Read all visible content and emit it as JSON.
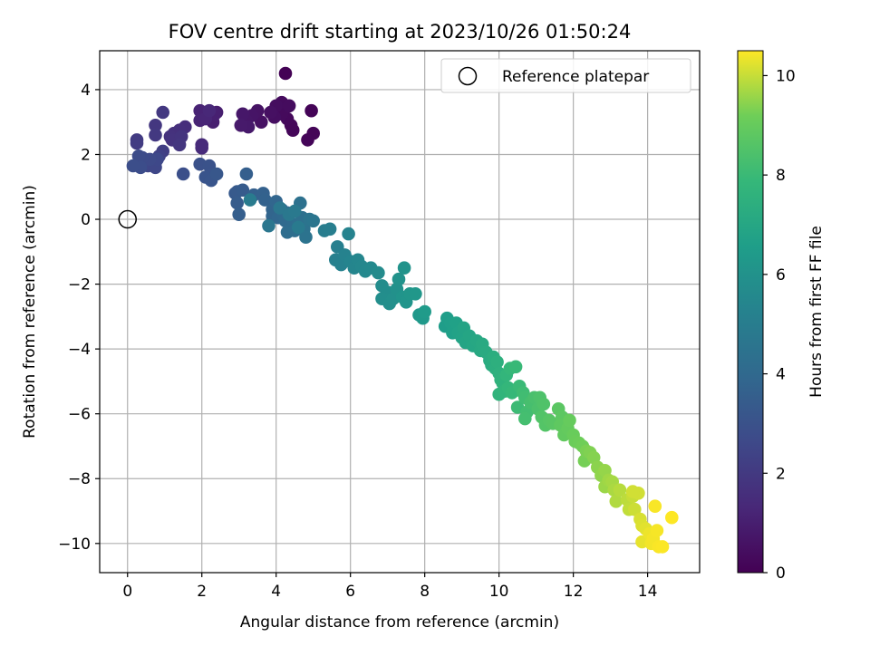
{
  "chart_data": {
    "type": "scatter",
    "title": "FOV centre drift starting at 2023/10/26 01:50:24",
    "xlabel": "Angular distance from reference (arcmin)",
    "ylabel": "Rotation from reference (arcmin)",
    "xlim": [
      -0.75,
      15.4
    ],
    "ylim": [
      -10.9,
      5.2
    ],
    "x_ticks": [
      0,
      2,
      4,
      6,
      8,
      10,
      12,
      14
    ],
    "y_ticks": [
      -10,
      -8,
      -6,
      -4,
      -2,
      0,
      2,
      4
    ],
    "x_tick_labels": [
      "0",
      "2",
      "4",
      "6",
      "8",
      "10",
      "12",
      "14"
    ],
    "y_tick_labels": [
      "−10",
      "−8",
      "−6",
      "−4",
      "−2",
      "0",
      "2",
      "4"
    ],
    "grid": true,
    "legend": {
      "position": "top-right",
      "entries": [
        "Reference platepar"
      ]
    },
    "reference_point": {
      "label": "Reference platepar",
      "x": 0,
      "y": 0
    },
    "colorbar": {
      "label": "Hours from first FF file",
      "colormap": "viridis",
      "range": [
        0,
        10.5
      ],
      "ticks": [
        0,
        2,
        4,
        6,
        8,
        10
      ],
      "tick_labels": [
        "0",
        "2",
        "4",
        "6",
        "8",
        "10"
      ]
    },
    "series": [
      {
        "columns": [
          "x_arcmin",
          "y_arcmin",
          "hours"
        ],
        "points": [
          [
            4.25,
            4.5,
            0.05
          ],
          [
            4.95,
            3.35,
            0.1
          ],
          [
            5.0,
            2.65,
            0.12
          ],
          [
            4.85,
            2.45,
            0.15
          ],
          [
            4.45,
            2.75,
            0.18
          ],
          [
            4.4,
            2.9,
            0.2
          ],
          [
            4.3,
            3.1,
            0.25
          ],
          [
            4.15,
            3.25,
            0.3
          ],
          [
            4.15,
            3.6,
            0.33
          ],
          [
            4.35,
            3.5,
            0.36
          ],
          [
            4.0,
            3.5,
            0.4
          ],
          [
            3.95,
            3.15,
            0.45
          ],
          [
            3.85,
            3.3,
            0.5
          ],
          [
            3.6,
            3.0,
            0.55
          ],
          [
            3.5,
            3.35,
            0.6
          ],
          [
            3.35,
            3.2,
            0.65
          ],
          [
            3.2,
            3.05,
            0.7
          ],
          [
            3.1,
            3.25,
            0.75
          ],
          [
            3.25,
            2.85,
            0.8
          ],
          [
            3.05,
            2.9,
            0.85
          ],
          [
            2.4,
            3.3,
            0.95
          ],
          [
            2.3,
            3.0,
            1.0
          ],
          [
            2.35,
            3.25,
            1.05
          ],
          [
            2.15,
            3.3,
            1.1
          ],
          [
            1.95,
            3.35,
            1.15
          ],
          [
            1.95,
            3.05,
            1.2
          ],
          [
            2.1,
            3.1,
            1.25
          ],
          [
            2.2,
            3.35,
            1.3
          ],
          [
            2.0,
            2.3,
            1.4
          ],
          [
            2.0,
            2.2,
            1.45
          ],
          [
            1.55,
            2.85,
            1.55
          ],
          [
            1.4,
            2.75,
            1.6
          ],
          [
            1.25,
            2.65,
            1.65
          ],
          [
            1.15,
            2.55,
            1.7
          ],
          [
            1.2,
            2.45,
            1.75
          ],
          [
            1.45,
            2.55,
            1.8
          ],
          [
            1.4,
            2.3,
            1.85
          ],
          [
            0.75,
            2.9,
            1.9
          ],
          [
            0.95,
            3.3,
            1.95
          ],
          [
            0.75,
            2.6,
            2.0
          ],
          [
            0.25,
            2.45,
            2.05
          ],
          [
            0.25,
            2.35,
            2.1
          ],
          [
            0.95,
            2.1,
            2.2
          ],
          [
            0.85,
            1.95,
            2.3
          ],
          [
            0.75,
            1.75,
            2.4
          ],
          [
            0.55,
            1.65,
            2.5
          ],
          [
            0.75,
            1.6,
            2.55
          ],
          [
            0.8,
            1.85,
            2.6
          ],
          [
            0.6,
            1.85,
            2.65
          ],
          [
            0.4,
            1.9,
            2.7
          ],
          [
            0.3,
            1.95,
            2.75
          ],
          [
            0.35,
            1.6,
            2.8
          ],
          [
            0.15,
            1.65,
            2.85
          ],
          [
            1.5,
            1.4,
            2.9
          ],
          [
            1.95,
            1.7,
            2.95
          ],
          [
            2.2,
            1.65,
            3.0
          ],
          [
            2.25,
            1.35,
            3.05
          ],
          [
            2.1,
            1.3,
            3.1
          ],
          [
            2.25,
            1.2,
            3.15
          ],
          [
            2.4,
            1.4,
            3.2
          ],
          [
            2.9,
            0.8,
            3.3
          ],
          [
            2.95,
            0.85,
            3.35
          ],
          [
            3.1,
            0.9,
            3.4
          ],
          [
            2.95,
            0.5,
            3.45
          ],
          [
            3.0,
            0.15,
            3.5
          ],
          [
            3.2,
            1.4,
            3.55
          ],
          [
            3.4,
            0.75,
            3.6
          ],
          [
            3.65,
            0.8,
            3.65
          ],
          [
            3.7,
            0.6,
            3.7
          ],
          [
            3.9,
            0.3,
            3.75
          ],
          [
            3.9,
            0.1,
            3.8
          ],
          [
            4.0,
            0.55,
            3.85
          ],
          [
            4.05,
            0.05,
            3.9
          ],
          [
            4.15,
            0.3,
            3.95
          ],
          [
            4.2,
            0.1,
            4.0
          ],
          [
            4.25,
            -0.05,
            4.05
          ],
          [
            4.3,
            0.2,
            4.1
          ],
          [
            4.45,
            -0.15,
            4.15
          ],
          [
            4.3,
            -0.4,
            4.2
          ],
          [
            4.5,
            -0.35,
            4.25
          ],
          [
            4.6,
            -0.15,
            4.3
          ],
          [
            4.7,
            0.05,
            4.35
          ],
          [
            4.65,
            0.5,
            4.4
          ],
          [
            4.75,
            -0.3,
            4.45
          ],
          [
            4.8,
            -0.55,
            4.5
          ],
          [
            4.9,
            0.0,
            4.55
          ],
          [
            5.0,
            -0.05,
            4.6
          ],
          [
            3.8,
            -0.2,
            4.65
          ],
          [
            4.1,
            0.35,
            4.7
          ],
          [
            4.35,
            0.15,
            4.75
          ],
          [
            4.5,
            0.25,
            4.8
          ],
          [
            4.6,
            -0.25,
            4.85
          ],
          [
            3.3,
            0.6,
            4.9
          ],
          [
            5.3,
            -0.35,
            5.0
          ],
          [
            5.45,
            -0.3,
            5.05
          ],
          [
            5.65,
            -0.85,
            5.1
          ],
          [
            5.6,
            -1.25,
            5.15
          ],
          [
            5.75,
            -1.4,
            5.2
          ],
          [
            5.85,
            -1.1,
            5.25
          ],
          [
            5.95,
            -0.45,
            5.3
          ],
          [
            6.0,
            -1.3,
            5.35
          ],
          [
            6.1,
            -1.5,
            5.4
          ],
          [
            6.2,
            -1.25,
            5.45
          ],
          [
            6.3,
            -1.45,
            5.5
          ],
          [
            6.4,
            -1.6,
            5.55
          ],
          [
            6.55,
            -1.5,
            5.6
          ],
          [
            6.75,
            -1.65,
            5.65
          ],
          [
            6.85,
            -2.05,
            5.7
          ],
          [
            7.0,
            -2.25,
            5.75
          ],
          [
            6.85,
            -2.45,
            5.8
          ],
          [
            7.05,
            -2.6,
            5.85
          ],
          [
            7.15,
            -2.45,
            5.9
          ],
          [
            7.25,
            -2.15,
            5.95
          ],
          [
            7.3,
            -1.85,
            6.0
          ],
          [
            7.45,
            -1.5,
            6.05
          ],
          [
            7.4,
            -2.4,
            6.1
          ],
          [
            7.5,
            -2.55,
            6.15
          ],
          [
            7.6,
            -2.3,
            6.2
          ],
          [
            7.75,
            -2.3,
            6.25
          ],
          [
            7.85,
            -2.95,
            6.3
          ],
          [
            7.95,
            -3.05,
            6.35
          ],
          [
            8.0,
            -2.85,
            6.4
          ],
          [
            8.55,
            -3.3,
            6.5
          ],
          [
            8.6,
            -3.05,
            6.55
          ],
          [
            8.7,
            -3.2,
            6.6
          ],
          [
            8.75,
            -3.5,
            6.65
          ],
          [
            8.85,
            -3.2,
            6.7
          ],
          [
            8.9,
            -3.5,
            6.75
          ],
          [
            9.0,
            -3.65,
            6.8
          ],
          [
            9.05,
            -3.35,
            6.85
          ],
          [
            9.1,
            -3.8,
            6.9
          ],
          [
            9.2,
            -3.6,
            6.95
          ],
          [
            9.3,
            -3.9,
            7.0
          ],
          [
            9.4,
            -3.75,
            7.05
          ],
          [
            9.5,
            -4.05,
            7.1
          ],
          [
            9.55,
            -3.85,
            7.15
          ],
          [
            9.65,
            -4.1,
            7.2
          ],
          [
            9.75,
            -4.35,
            7.25
          ],
          [
            9.8,
            -4.5,
            7.3
          ],
          [
            9.85,
            -4.25,
            7.35
          ],
          [
            9.9,
            -4.6,
            7.4
          ],
          [
            9.95,
            -4.4,
            7.45
          ],
          [
            10.0,
            -4.75,
            7.5
          ],
          [
            10.05,
            -4.95,
            7.55
          ],
          [
            10.1,
            -5.05,
            7.6
          ],
          [
            10.0,
            -5.4,
            7.65
          ],
          [
            10.15,
            -5.3,
            7.7
          ],
          [
            10.2,
            -4.8,
            7.75
          ],
          [
            10.25,
            -5.2,
            7.8
          ],
          [
            10.3,
            -4.6,
            7.85
          ],
          [
            10.35,
            -5.35,
            7.9
          ],
          [
            10.45,
            -4.55,
            7.95
          ],
          [
            10.55,
            -5.15,
            8.0
          ],
          [
            10.5,
            -5.8,
            8.05
          ],
          [
            10.65,
            -5.35,
            8.1
          ],
          [
            10.7,
            -5.5,
            8.15
          ],
          [
            10.75,
            -5.95,
            8.2
          ],
          [
            10.7,
            -6.15,
            8.25
          ],
          [
            10.85,
            -5.65,
            8.3
          ],
          [
            10.95,
            -5.5,
            8.35
          ],
          [
            11.05,
            -5.85,
            8.4
          ],
          [
            11.1,
            -5.5,
            8.45
          ],
          [
            11.2,
            -5.7,
            8.5
          ],
          [
            11.15,
            -6.1,
            8.55
          ],
          [
            11.25,
            -6.35,
            8.6
          ],
          [
            11.35,
            -6.2,
            8.65
          ],
          [
            11.45,
            -6.3,
            8.7
          ],
          [
            11.6,
            -5.85,
            8.75
          ],
          [
            11.7,
            -6.1,
            8.8
          ],
          [
            11.65,
            -6.35,
            8.85
          ],
          [
            11.75,
            -6.65,
            8.9
          ],
          [
            11.85,
            -6.45,
            8.95
          ],
          [
            11.9,
            -6.2,
            9.0
          ],
          [
            12.0,
            -6.65,
            9.05
          ],
          [
            12.05,
            -6.85,
            9.1
          ],
          [
            12.15,
            -6.9,
            9.15
          ],
          [
            12.25,
            -7.0,
            9.2
          ],
          [
            12.3,
            -7.45,
            9.25
          ],
          [
            12.35,
            -7.15,
            9.3
          ],
          [
            12.45,
            -7.2,
            9.35
          ],
          [
            12.55,
            -7.35,
            9.4
          ],
          [
            12.65,
            -7.65,
            9.45
          ],
          [
            12.75,
            -7.9,
            9.5
          ],
          [
            12.85,
            -7.75,
            9.55
          ],
          [
            12.85,
            -8.25,
            9.6
          ],
          [
            12.95,
            -8.05,
            9.65
          ],
          [
            13.05,
            -8.1,
            9.7
          ],
          [
            13.1,
            -8.35,
            9.75
          ],
          [
            13.15,
            -8.7,
            9.8
          ],
          [
            13.25,
            -8.35,
            9.85
          ],
          [
            13.45,
            -8.65,
            9.9
          ],
          [
            13.5,
            -8.95,
            9.95
          ],
          [
            13.6,
            -8.55,
            10.0
          ],
          [
            13.65,
            -8.95,
            10.05
          ],
          [
            13.75,
            -8.45,
            10.1
          ],
          [
            13.8,
            -9.25,
            10.15
          ],
          [
            13.85,
            -9.45,
            10.2
          ],
          [
            13.95,
            -9.55,
            10.25
          ],
          [
            13.85,
            -9.95,
            10.3
          ],
          [
            14.05,
            -9.7,
            10.35
          ],
          [
            14.1,
            -10.0,
            10.4
          ],
          [
            14.15,
            -9.85,
            10.42
          ],
          [
            14.25,
            -9.6,
            10.44
          ],
          [
            14.2,
            -8.85,
            10.45
          ],
          [
            14.3,
            -10.1,
            10.46
          ],
          [
            14.4,
            -10.1,
            10.48
          ],
          [
            13.6,
            -8.4,
            10.1
          ],
          [
            14.65,
            -9.2,
            10.5
          ]
        ]
      }
    ]
  }
}
